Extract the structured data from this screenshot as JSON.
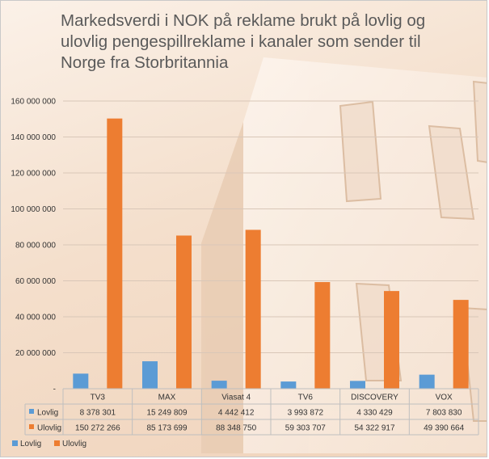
{
  "chart_data": {
    "type": "bar",
    "title": "Markedsverdi i NOK på reklame brukt på lovlig og ulovlig pengespillreklame i kanaler som sender til Norge fra Storbritannia",
    "categories": [
      "TV3",
      "MAX",
      "Viasat 4",
      "TV6",
      "DISCOVERY",
      "VOX"
    ],
    "series": [
      {
        "name": "Lovlig",
        "color": "#5b9bd5",
        "values": [
          8378301,
          15249809,
          4442412,
          3993872,
          4330429,
          7803830
        ],
        "labels": [
          "8 378 301",
          "15 249 809",
          "4 442 412",
          "3 993 872",
          "4 330 429",
          "7 803 830"
        ]
      },
      {
        "name": "Ulovlig",
        "color": "#ed7d31",
        "values": [
          150272266,
          85173699,
          88348750,
          59303707,
          54322917,
          49390664
        ],
        "labels": [
          "150 272 266",
          "85 173 699",
          "88 348 750",
          "59 303 707",
          "54 322 917",
          "49 390 664"
        ]
      }
    ],
    "ylim": [
      0,
      160000000
    ],
    "yticks": [
      0,
      20000000,
      40000000,
      60000000,
      80000000,
      100000000,
      120000000,
      140000000,
      160000000
    ],
    "ytick_labels": [
      "-",
      "20 000 000",
      "40 000 000",
      "60 000 000",
      "80 000 000",
      "100 000 000",
      "120 000 000",
      "140 000 000",
      "160 000 000"
    ],
    "legend_position": "bottom-left",
    "data_table": true
  }
}
